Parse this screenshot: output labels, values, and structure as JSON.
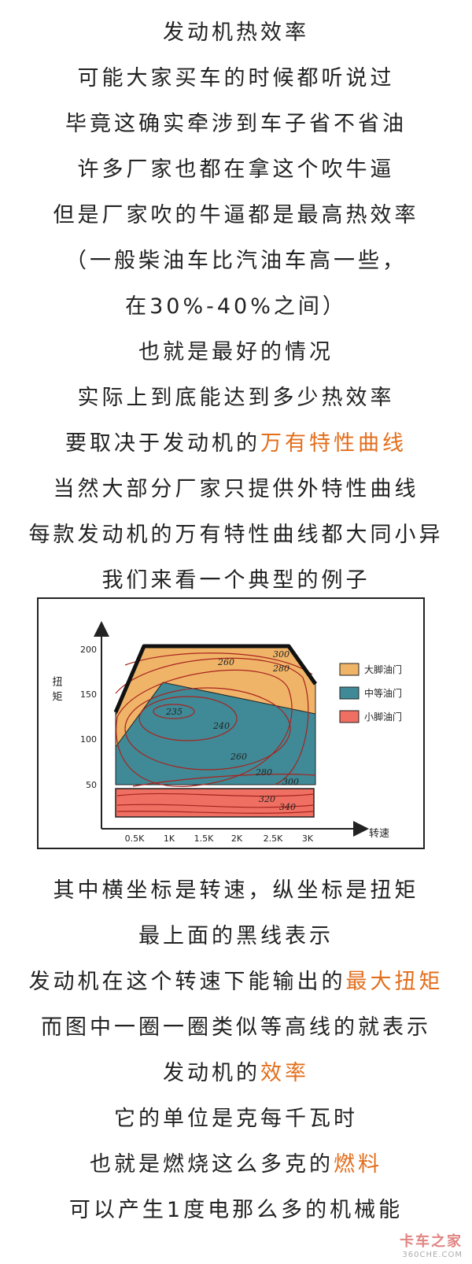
{
  "paragraph_top": [
    "发动机热效率",
    "可能大家买车的时候都听说过",
    "毕竟这确实牵涉到车子省不省油",
    "许多厂家也都在拿这个吹牛逼",
    "但是厂家吹的牛逼都是最高热效率",
    "（一般柴油车比汽油车高一些，",
    "在30%-40%之间）",
    "也就是最好的情况",
    "实际上到底能达到多少热效率"
  ],
  "line_curve": {
    "prefix": "要取决于发动机的",
    "highlight": "万有特性曲线"
  },
  "paragraph_mid": [
    "当然大部分厂家只提供外特性曲线",
    "每款发动机的万有特性曲线都大同小异",
    "我们来看一个典型的例子"
  ],
  "chart_data": {
    "type": "area",
    "ylabel": "扭矩",
    "xlabel": "转速",
    "x_ticks": [
      "0.5K",
      "1K",
      "1.5K",
      "2K",
      "2.5K",
      "3K"
    ],
    "y_ticks": [
      "50",
      "100",
      "150",
      "200"
    ],
    "legend": [
      {
        "label": "大脚油门",
        "color": "#f0b468"
      },
      {
        "label": "中等油门",
        "color": "#3f8a96"
      },
      {
        "label": "小脚油门",
        "color": "#ef6f62"
      }
    ],
    "legend_position": "right",
    "max_torque_line": {
      "x": [
        0.3,
        0.62,
        2.85,
        3.2
      ],
      "y": [
        130,
        200,
        200,
        130
      ]
    },
    "contour_labels": [
      "235",
      "240",
      "260",
      "260",
      "280",
      "280",
      "300",
      "300",
      "320",
      "340"
    ]
  },
  "paragraph_after": [
    "其中横坐标是转速，纵坐标是扭矩",
    "最上面的黑线表示"
  ],
  "line_max_torque": {
    "prefix": "发动机在这个转速下能输出的",
    "highlight": "最大扭矩"
  },
  "line_contour": "而图中一圈一圈类似等高线的就表示",
  "line_efficiency": {
    "prefix": "发动机的",
    "highlight": "效率"
  },
  "line_unit": "它的单位是克每千瓦时",
  "line_fuel": {
    "prefix": "也就是燃烧这么多克的",
    "highlight": "燃料"
  },
  "line_last": "可以产生1度电那么多的机械能",
  "watermark": {
    "main": "卡车之家",
    "sub": "360CHE.COM"
  },
  "colors": {
    "highlight": "#e36e1c",
    "large_throttle": "#f0b468",
    "medium_throttle": "#3f8a96",
    "small_throttle": "#ef6f62",
    "contour": "#a8231f"
  }
}
